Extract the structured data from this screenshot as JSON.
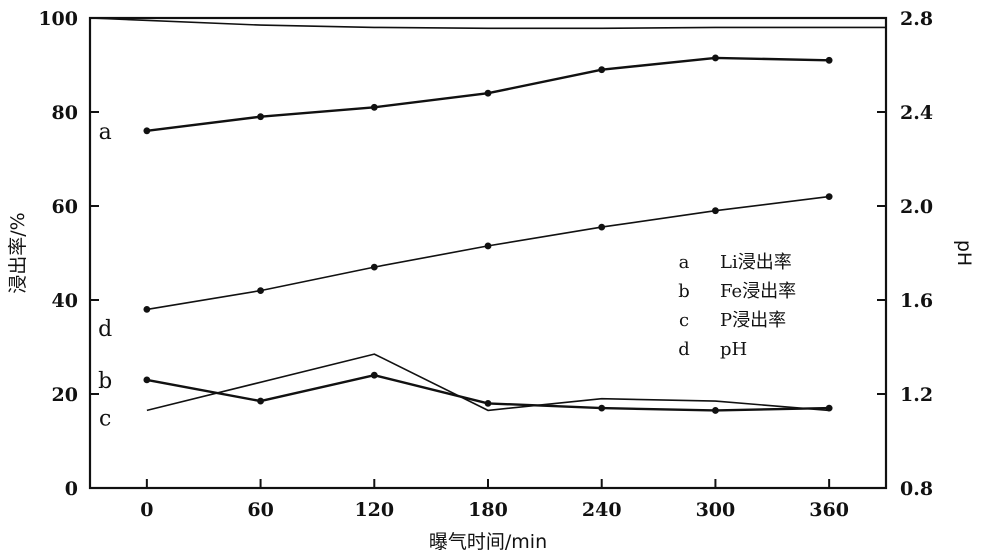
{
  "chart_data": {
    "type": "line",
    "xlabel": "曝气时间/min",
    "ylabel": "浸出率/%",
    "y2label": "pH",
    "x_ticks": [
      0,
      60,
      120,
      180,
      240,
      300,
      360
    ],
    "y_ticks": [
      0,
      20,
      40,
      60,
      80,
      100
    ],
    "y2_ticks": [
      "0.8",
      "1.2",
      "1.6",
      "2.0",
      "2.4",
      "2.8"
    ],
    "xlim": [
      -30,
      390
    ],
    "ylim": [
      0,
      100
    ],
    "y2lim": [
      0.8,
      2.8
    ],
    "grid": false,
    "legend_position": "center-right",
    "series": [
      {
        "key": "a",
        "name": "Li浸出率",
        "axis": "left",
        "markers": true,
        "x": [
          0,
          60,
          120,
          180,
          240,
          300,
          360
        ],
        "y": [
          76,
          79,
          81,
          84,
          89,
          91.5,
          91
        ]
      },
      {
        "key": "b",
        "name": "Fe浸出率",
        "axis": "left",
        "markers": true,
        "x": [
          0,
          60,
          120,
          180,
          240,
          300,
          360
        ],
        "y": [
          23,
          18.5,
          24,
          18,
          17,
          16.5,
          17
        ]
      },
      {
        "key": "c",
        "name": "P浸出率",
        "axis": "left",
        "markers": false,
        "x": [
          0,
          120,
          180,
          240,
          300,
          360
        ],
        "y": [
          16.5,
          28.5,
          16.5,
          19,
          18.5,
          16.5
        ]
      },
      {
        "key": "d",
        "name": "pH",
        "axis": "right",
        "markers": true,
        "x": [
          0,
          60,
          120,
          180,
          240,
          300,
          360
        ],
        "y": [
          1.56,
          1.64,
          1.74,
          1.83,
          1.91,
          1.98,
          2.04
        ]
      },
      {
        "key": "",
        "name": "",
        "axis": "left",
        "markers": false,
        "x": [
          -30,
          60,
          120,
          180,
          240,
          300,
          390
        ],
        "y": [
          100,
          98.5,
          98,
          97.8,
          97.8,
          98,
          98
        ]
      }
    ],
    "legend": [
      {
        "key": "a",
        "label": "Li浸出率"
      },
      {
        "key": "b",
        "label": "Fe浸出率"
      },
      {
        "key": "c",
        "label": "P浸出率"
      },
      {
        "key": "d",
        "label": "pH"
      }
    ],
    "curve_labels": [
      {
        "key": "a",
        "text": "a",
        "x": -22,
        "y": 76
      },
      {
        "key": "d",
        "text": "d",
        "x": -22,
        "y": 34
      },
      {
        "key": "b",
        "text": "b",
        "x": -22,
        "y": 23
      },
      {
        "key": "c",
        "text": "c",
        "x": -22,
        "y": 15
      }
    ]
  }
}
